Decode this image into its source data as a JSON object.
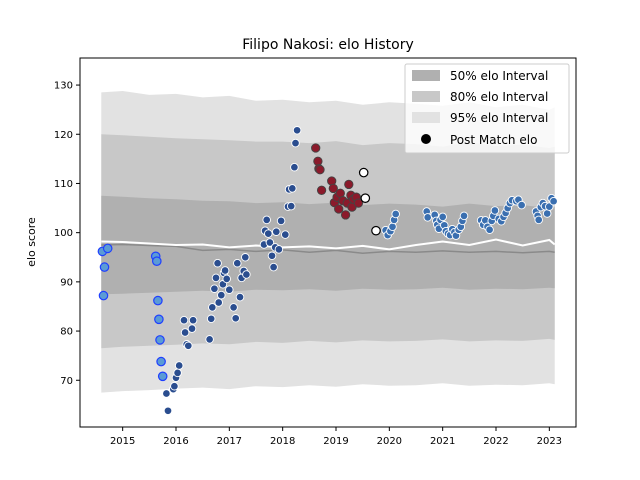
{
  "chart_data": {
    "type": "scatter",
    "title": "Filipo Nakosi: elo History",
    "xlabel": "",
    "ylabel": "elo score",
    "xlim": [
      2014.2,
      2023.5
    ],
    "ylim": [
      60.5,
      135.5
    ],
    "x_ticks": [
      2015,
      2016,
      2017,
      2018,
      2019,
      2020,
      2021,
      2022,
      2023
    ],
    "y_ticks": [
      70,
      80,
      90,
      100,
      110,
      120,
      130
    ],
    "grid": false,
    "legend_position": "top-right",
    "legend": [
      "50% elo Interval",
      "80% elo Interval",
      "95% elo Interval",
      "Post Match elo"
    ],
    "colors": {
      "band_50": "#b0b0b0",
      "band_80": "#c8c8c8",
      "band_95": "#e2e2e2",
      "median_line": "#8a8a8a",
      "mean_line": "#ffffff",
      "point_edge_blue": "#1f3fff",
      "point_light_blue": "#5b9bd5",
      "point_navy": "#2a4d8f",
      "point_crimson": "#8b1a2b",
      "point_white": "#ffffff",
      "point_steel": "#3a6fb0"
    },
    "bands": {
      "x": [
        2014.6,
        2015.0,
        2015.5,
        2016.0,
        2016.5,
        2017.0,
        2017.5,
        2018.0,
        2018.5,
        2019.0,
        2019.5,
        2020.0,
        2020.5,
        2021.0,
        2021.5,
        2022.0,
        2022.5,
        2023.0,
        2023.1
      ],
      "p95_upper": [
        128.5,
        128.8,
        128.0,
        128.2,
        127.5,
        127.8,
        126.8,
        127.0,
        126.5,
        126.8,
        126.0,
        126.5,
        126.2,
        125.8,
        126.5,
        125.5,
        126.0,
        125.0,
        125.5
      ],
      "p80_upper": [
        120.0,
        119.8,
        119.5,
        119.2,
        119.0,
        118.8,
        118.5,
        118.5,
        118.2,
        118.6,
        117.8,
        118.2,
        118.0,
        117.5,
        118.4,
        117.6,
        117.9,
        117.2,
        117.5
      ],
      "p50_upper": [
        107.5,
        107.3,
        107.0,
        106.8,
        106.5,
        106.4,
        106.0,
        106.2,
        105.8,
        106.1,
        105.6,
        105.9,
        105.7,
        105.3,
        105.9,
        105.4,
        105.6,
        105.0,
        105.2
      ],
      "p50_lower": [
        87.5,
        87.6,
        87.8,
        88.0,
        88.2,
        88.0,
        88.4,
        88.3,
        88.5,
        88.2,
        88.6,
        88.4,
        88.5,
        88.8,
        88.4,
        88.6,
        88.5,
        88.8,
        88.7
      ],
      "p80_lower": [
        76.5,
        76.8,
        77.0,
        77.2,
        77.5,
        77.3,
        77.8,
        77.6,
        78.0,
        77.7,
        78.1,
        77.9,
        78.0,
        78.3,
        77.9,
        78.1,
        78.0,
        78.4,
        78.2
      ],
      "p95_lower": [
        67.5,
        67.8,
        68.0,
        68.3,
        68.5,
        68.2,
        68.8,
        68.6,
        69.0,
        68.7,
        69.2,
        68.9,
        69.0,
        69.4,
        68.9,
        69.1,
        69.0,
        69.4,
        69.2
      ],
      "median": [
        97.5,
        97.6,
        97.4,
        97.2,
        96.4,
        96.6,
        96.2,
        96.5,
        96.0,
        96.4,
        95.8,
        96.2,
        96.0,
        96.3,
        96.0,
        96.2,
        95.9,
        96.2,
        96.0
      ],
      "mean": [
        98.2,
        98.1,
        97.8,
        97.5,
        97.6,
        97.0,
        97.4,
        97.0,
        97.2,
        96.8,
        97.3,
        96.6,
        97.5,
        98.2,
        97.5,
        98.6,
        97.4,
        98.5,
        97.6
      ]
    },
    "series": [
      {
        "style": "open-blue",
        "points": [
          [
            2014.62,
            96.2
          ],
          [
            2014.66,
            93.0
          ],
          [
            2014.64,
            87.2
          ],
          [
            2014.72,
            96.8
          ],
          [
            2015.62,
            95.2
          ],
          [
            2015.64,
            94.2
          ],
          [
            2015.66,
            86.2
          ],
          [
            2015.68,
            82.4
          ],
          [
            2015.7,
            78.2
          ],
          [
            2015.72,
            73.8
          ],
          [
            2015.75,
            70.8
          ]
        ]
      },
      {
        "style": "navy",
        "points": [
          [
            2015.85,
            63.8
          ],
          [
            2015.82,
            67.3
          ],
          [
            2015.95,
            68.2
          ],
          [
            2015.97,
            68.8
          ],
          [
            2016.0,
            70.5
          ],
          [
            2016.03,
            71.5
          ],
          [
            2016.06,
            73.0
          ],
          [
            2016.15,
            82.2
          ],
          [
            2016.17,
            79.7
          ],
          [
            2016.2,
            77.3
          ],
          [
            2016.23,
            77.0
          ],
          [
            2016.3,
            80.5
          ],
          [
            2016.32,
            82.2
          ],
          [
            2016.63,
            78.3
          ],
          [
            2016.66,
            82.5
          ],
          [
            2016.68,
            84.8
          ],
          [
            2016.72,
            88.6
          ],
          [
            2016.75,
            90.8
          ],
          [
            2016.78,
            93.8
          ],
          [
            2016.8,
            85.8
          ],
          [
            2016.85,
            87.3
          ],
          [
            2016.88,
            89.5
          ],
          [
            2016.9,
            91.8
          ],
          [
            2016.92,
            92.3
          ],
          [
            2016.95,
            90.6
          ],
          [
            2017.0,
            88.4
          ],
          [
            2017.08,
            84.8
          ],
          [
            2017.12,
            82.6
          ],
          [
            2017.15,
            93.8
          ],
          [
            2017.2,
            86.9
          ],
          [
            2017.23,
            90.8
          ],
          [
            2017.27,
            92.2
          ],
          [
            2017.3,
            95.0
          ],
          [
            2017.32,
            91.5
          ]
        ]
      },
      {
        "style": "navy-light",
        "points": [
          [
            2017.65,
            97.6
          ],
          [
            2017.67,
            100.4
          ],
          [
            2017.7,
            102.6
          ],
          [
            2017.73,
            99.8
          ],
          [
            2017.76,
            98.0
          ],
          [
            2017.8,
            95.3
          ],
          [
            2017.83,
            93.0
          ],
          [
            2017.86,
            97.0
          ],
          [
            2017.88,
            100.2
          ],
          [
            2017.93,
            96.6
          ],
          [
            2017.97,
            102.4
          ],
          [
            2018.05,
            99.6
          ],
          [
            2018.1,
            105.3
          ],
          [
            2018.12,
            108.8
          ],
          [
            2018.16,
            105.4
          ],
          [
            2018.18,
            109.0
          ],
          [
            2018.22,
            113.3
          ],
          [
            2018.24,
            118.2
          ],
          [
            2018.27,
            120.8
          ]
        ]
      },
      {
        "style": "crimson",
        "points": [
          [
            2018.62,
            117.2
          ],
          [
            2018.66,
            114.5
          ],
          [
            2018.68,
            113.0
          ],
          [
            2018.7,
            112.8
          ],
          [
            2018.73,
            108.6
          ],
          [
            2018.92,
            110.5
          ],
          [
            2018.95,
            109.0
          ],
          [
            2018.97,
            106.1
          ],
          [
            2019.02,
            107.2
          ],
          [
            2019.05,
            104.8
          ],
          [
            2019.08,
            108.0
          ],
          [
            2019.13,
            106.5
          ],
          [
            2019.18,
            103.6
          ],
          [
            2019.21,
            106.0
          ],
          [
            2019.24,
            109.8
          ],
          [
            2019.28,
            107.6
          ],
          [
            2019.3,
            105.2
          ],
          [
            2019.33,
            106.8
          ],
          [
            2019.38,
            107.2
          ],
          [
            2019.42,
            106.0
          ]
        ]
      },
      {
        "style": "white",
        "points": [
          [
            2019.52,
            112.2
          ],
          [
            2019.55,
            107.0
          ],
          [
            2019.75,
            100.4
          ]
        ]
      },
      {
        "style": "steel",
        "points": [
          [
            2019.93,
            100.5
          ],
          [
            2019.97,
            99.5
          ],
          [
            2020.02,
            100.3
          ],
          [
            2020.06,
            101.2
          ],
          [
            2020.09,
            102.6
          ],
          [
            2020.12,
            103.8
          ],
          [
            2020.7,
            104.3
          ],
          [
            2020.72,
            103.1
          ],
          [
            2020.85,
            103.6
          ],
          [
            2020.88,
            102.4
          ],
          [
            2020.9,
            101.6
          ],
          [
            2020.93,
            100.8
          ],
          [
            2020.96,
            102.6
          ],
          [
            2021.0,
            103.2
          ],
          [
            2021.03,
            101.5
          ],
          [
            2021.06,
            100.3
          ],
          [
            2021.1,
            99.8
          ],
          [
            2021.14,
            99.5
          ],
          [
            2021.18,
            100.7
          ],
          [
            2021.22,
            100.1
          ],
          [
            2021.25,
            99.4
          ],
          [
            2021.3,
            100.6
          ],
          [
            2021.34,
            101.2
          ],
          [
            2021.37,
            102.4
          ],
          [
            2021.4,
            103.4
          ],
          [
            2021.72,
            102.5
          ],
          [
            2021.76,
            101.6
          ],
          [
            2021.8,
            102.5
          ],
          [
            2021.84,
            101.2
          ],
          [
            2021.88,
            100.6
          ],
          [
            2021.92,
            102.4
          ],
          [
            2021.95,
            103.4
          ],
          [
            2021.98,
            104.5
          ],
          [
            2022.05,
            102.8
          ],
          [
            2022.1,
            102.3
          ],
          [
            2022.14,
            103.2
          ],
          [
            2022.18,
            104.0
          ],
          [
            2022.22,
            105.0
          ],
          [
            2022.26,
            106.0
          ],
          [
            2022.3,
            106.6
          ],
          [
            2022.38,
            106.4
          ],
          [
            2022.42,
            106.7
          ],
          [
            2022.48,
            105.6
          ],
          [
            2022.75,
            104.3
          ],
          [
            2022.78,
            103.4
          ],
          [
            2022.8,
            102.6
          ],
          [
            2022.84,
            105.2
          ],
          [
            2022.88,
            106.0
          ],
          [
            2022.92,
            105.4
          ],
          [
            2022.96,
            103.9
          ],
          [
            2023.0,
            105.3
          ],
          [
            2023.04,
            107.0
          ],
          [
            2023.08,
            106.4
          ]
        ]
      }
    ]
  }
}
